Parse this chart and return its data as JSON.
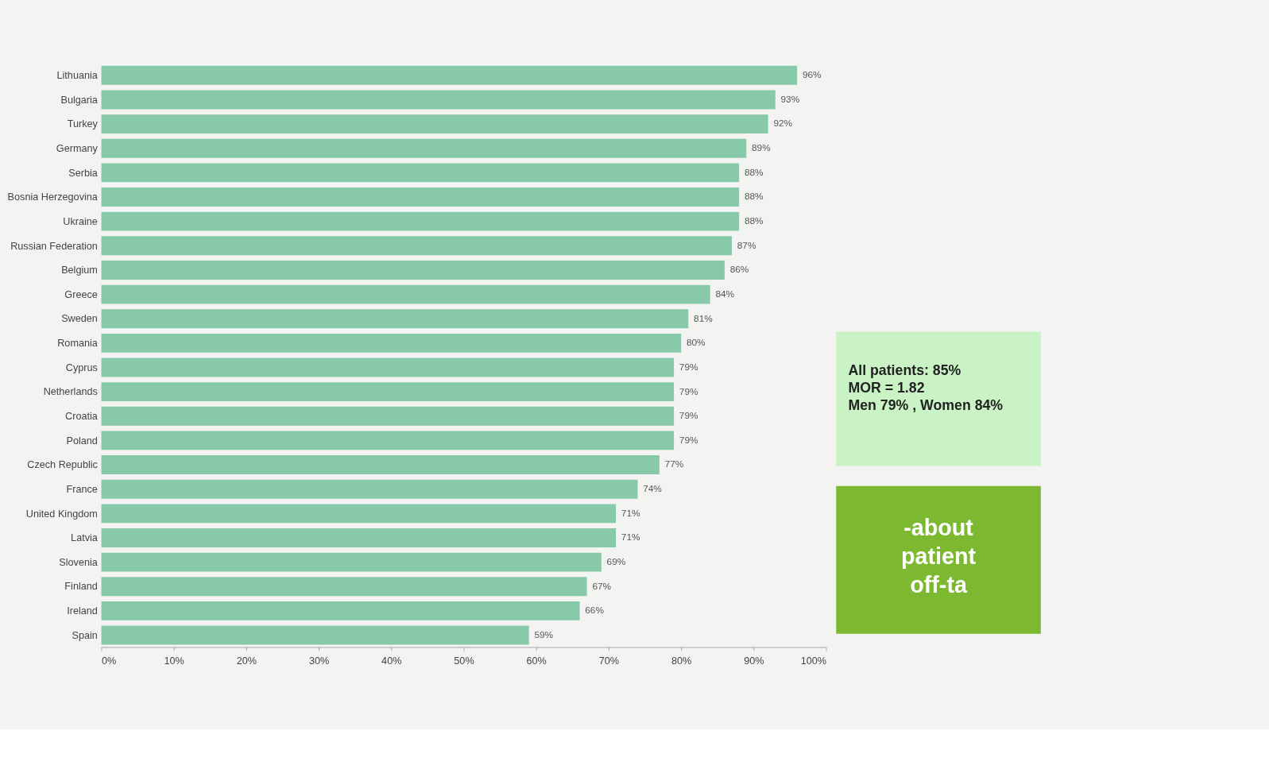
{
  "chart_data": {
    "type": "bar",
    "orientation": "horizontal",
    "categories": [
      "Lithuania",
      "Bulgaria",
      "Turkey",
      "Germany",
      "Serbia",
      "Bosnia Herzegovina",
      "Ukraine",
      "Russian Federation",
      "Belgium",
      "Greece",
      "Sweden",
      "Romania",
      "Cyprus",
      "Netherlands",
      "Croatia",
      "Poland",
      "Czech Republic",
      "France",
      "United Kingdom",
      "Latvia",
      "Slovenia",
      "Finland",
      "Ireland",
      "Spain"
    ],
    "values": [
      96,
      93,
      92,
      89,
      88,
      88,
      88,
      87,
      86,
      84,
      81,
      80,
      79,
      79,
      79,
      79,
      77,
      74,
      71,
      71,
      69,
      67,
      66,
      59
    ],
    "value_labels": [
      "96%",
      "93%",
      "92%",
      "89%",
      "88%",
      "88%",
      "88%",
      "87%",
      "86%",
      "84%",
      "81%",
      "80%",
      "79%",
      "79%",
      "79%",
      "79%",
      "77%",
      "74%",
      "71%",
      "71%",
      "69%",
      "67%",
      "66%",
      "59%"
    ],
    "color": "#88c9a9",
    "xlim": [
      0,
      100
    ],
    "xticks": [
      {
        "value": 0,
        "label": "0%"
      },
      {
        "value": 10,
        "label": "10%"
      },
      {
        "value": 20,
        "label": "20%"
      },
      {
        "value": 30,
        "label": "30%"
      },
      {
        "value": 40,
        "label": "40%"
      },
      {
        "value": 50,
        "label": "50%"
      },
      {
        "value": 60,
        "label": "60%"
      },
      {
        "value": 70,
        "label": "70%"
      },
      {
        "value": 80,
        "label": "80%"
      },
      {
        "value": 90,
        "label": "90%"
      },
      {
        "value": 100,
        "label": "100%"
      }
    ],
    "grid": false,
    "annotations": [
      "All patients: 85%\n\nMOR = 1.82\nMen 79% , Women 84%",
      "-about\npatient\noff-ta"
    ]
  }
}
